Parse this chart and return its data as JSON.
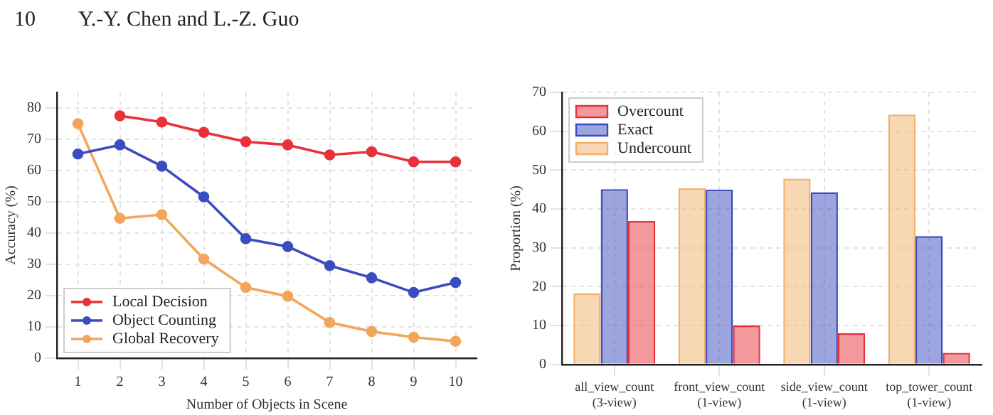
{
  "chart_data": [
    {
      "type": "line",
      "annotations": [
        "10",
        "Y.-Y. Chen and L.-Z. Guo"
      ],
      "xlabel": "Number of Objects in Scene",
      "ylabel": "Accuracy (%)",
      "categories": [
        "1",
        "2",
        "3",
        "4",
        "5",
        "6",
        "7",
        "8",
        "9",
        "10"
      ],
      "series": [
        {
          "name": "Local Decision",
          "color": "#e8313a",
          "values": [
            null,
            77.5,
            75.5,
            72.2,
            69.2,
            68.2,
            65,
            66,
            62.8,
            62.8
          ]
        },
        {
          "name": "Object Counting",
          "color": "#3b4cc0",
          "values": [
            65.3,
            68.2,
            61.4,
            51.6,
            38.2,
            35.7,
            29.6,
            25.7,
            21,
            24.2
          ]
        },
        {
          "name": "Global Recovery",
          "color": "#f2a65a",
          "values": [
            75,
            44.7,
            45.9,
            31.7,
            22.6,
            19.8,
            11.4,
            8.5,
            6.7,
            5.4
          ]
        }
      ],
      "ylim": [
        0,
        85
      ],
      "yticks": [
        0,
        10,
        20,
        30,
        40,
        50,
        60,
        70,
        80
      ],
      "grid": true,
      "legend": "bottom left",
      "marker": "circle",
      "line_style": "solid"
    },
    {
      "type": "bar",
      "ylabel": "Proportion (%)",
      "categories": [
        "all_view_count\n(3-view)",
        "front_view_count\n(1-view)",
        "side_view_count\n(1-view)",
        "top_tower_count\n(1-view)"
      ],
      "series": [
        {
          "name": "Undercount",
          "color": "#f2b06a",
          "values": [
            18.3,
            45.3,
            47.8,
            64.3
          ]
        },
        {
          "name": "Exact",
          "color": "#3b4cc0",
          "values": [
            45.1,
            45,
            44.3,
            33
          ]
        },
        {
          "name": "Overcount",
          "color": "#e8313a",
          "values": [
            36.9,
            10,
            8,
            3
          ]
        }
      ],
      "ylim": [
        0,
        70
      ],
      "yticks": [
        0,
        10,
        20,
        30,
        40,
        50,
        60,
        70
      ],
      "grid": true,
      "legend": "top left"
    }
  ]
}
